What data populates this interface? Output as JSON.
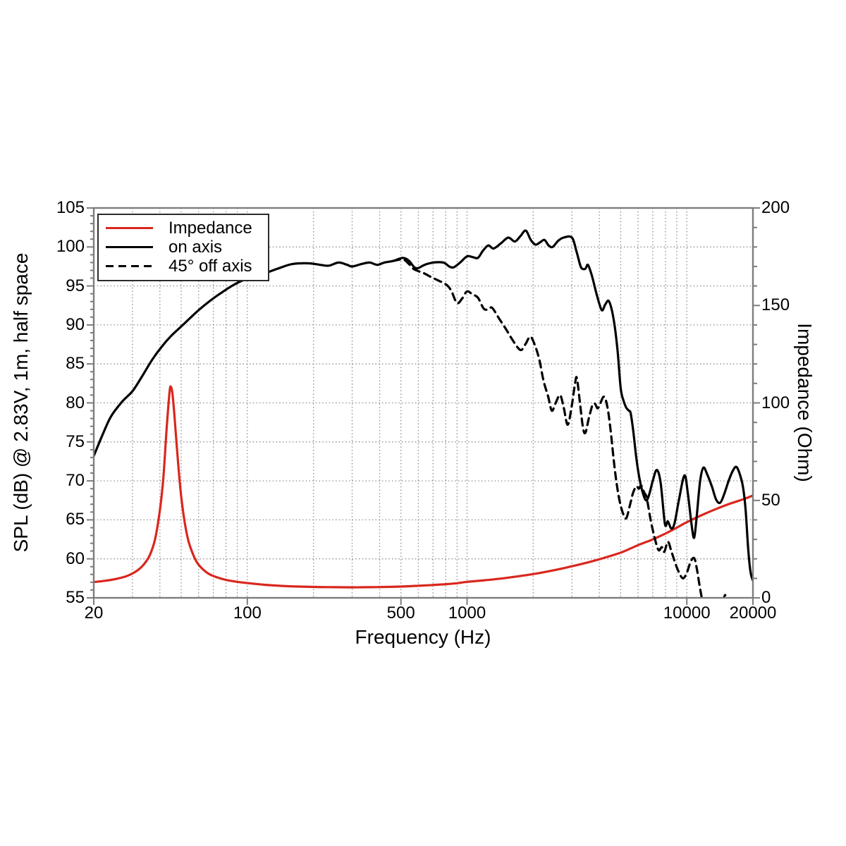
{
  "chart_data": {
    "type": "line",
    "xlabel": "Frequency (Hz)",
    "ylabel_left": "SPL (dB) @ 2.83V, 1m, half space",
    "ylabel_right": "Impedance (Ohm)",
    "x_scale": "log",
    "xlim": [
      20,
      20000
    ],
    "ylim_left": [
      55,
      105
    ],
    "ylim_right": [
      0,
      200
    ],
    "grid": "dotted",
    "x_ticks": [
      {
        "value": 20,
        "label": "20"
      },
      {
        "value": 100,
        "label": "100"
      },
      {
        "value": 500,
        "label": "500"
      },
      {
        "value": 1000,
        "label": "1000"
      },
      {
        "value": 10000,
        "label": "10000"
      },
      {
        "value": 20000,
        "label": "20000"
      }
    ],
    "y_ticks_left": [
      105,
      100,
      95,
      90,
      85,
      80,
      75,
      70,
      65,
      60,
      55
    ],
    "y_ticks_right": [
      200,
      150,
      100,
      50,
      0
    ],
    "colors": {
      "impedance": "#d9271e",
      "spl_curves": "#000000",
      "frame": "#7d7d7d",
      "grid": "#8c8c8c",
      "text": "#000000"
    },
    "legend": {
      "position": "top-left"
    },
    "series": [
      {
        "name": "Impedance",
        "axis": "right",
        "unit": "Ohm",
        "color": "#d9271e",
        "style": "solid",
        "points": [
          [
            20,
            8.1
          ],
          [
            22,
            8.6
          ],
          [
            25,
            9.6
          ],
          [
            28,
            11
          ],
          [
            30,
            12.5
          ],
          [
            32,
            14.5
          ],
          [
            34,
            17.5
          ],
          [
            36,
            22
          ],
          [
            38,
            30
          ],
          [
            40,
            45
          ],
          [
            41.5,
            62
          ],
          [
            43,
            88
          ],
          [
            44.3,
            106
          ],
          [
            45,
            108
          ],
          [
            45.8,
            103
          ],
          [
            47,
            88
          ],
          [
            48.5,
            68
          ],
          [
            50,
            52
          ],
          [
            52,
            38
          ],
          [
            54,
            29
          ],
          [
            57,
            21.5
          ],
          [
            60,
            17
          ],
          [
            65,
            13.2
          ],
          [
            70,
            11.2
          ],
          [
            80,
            9.2
          ],
          [
            90,
            8.2
          ],
          [
            100,
            7.6
          ],
          [
            120,
            6.7
          ],
          [
            150,
            6.0
          ],
          [
            200,
            5.6
          ],
          [
            250,
            5.45
          ],
          [
            300,
            5.4
          ],
          [
            350,
            5.45
          ],
          [
            400,
            5.55
          ],
          [
            500,
            5.8
          ],
          [
            600,
            6.2
          ],
          [
            700,
            6.6
          ],
          [
            800,
            7.0
          ],
          [
            900,
            7.5
          ],
          [
            1000,
            8.2
          ],
          [
            1200,
            9.0
          ],
          [
            1500,
            10.2
          ],
          [
            2000,
            12.2
          ],
          [
            2500,
            14.2
          ],
          [
            3000,
            16.2
          ],
          [
            3500,
            18.0
          ],
          [
            4000,
            19.8
          ],
          [
            5000,
            23.2
          ],
          [
            6000,
            27.0
          ],
          [
            7000,
            30.0
          ],
          [
            8000,
            33.0
          ],
          [
            9000,
            36.0
          ],
          [
            10000,
            38.8
          ],
          [
            12000,
            43.0
          ],
          [
            15000,
            47.5
          ],
          [
            18000,
            50.5
          ],
          [
            20000,
            52.5
          ]
        ]
      },
      {
        "name": "on axis",
        "axis": "left",
        "unit": "dB",
        "color": "#000000",
        "style": "solid",
        "points": [
          [
            20,
            73.2
          ],
          [
            22,
            76.0
          ],
          [
            24,
            78.3
          ],
          [
            27,
            80.2
          ],
          [
            30,
            81.5
          ],
          [
            33,
            83.3
          ],
          [
            37,
            85.6
          ],
          [
            41,
            87.3
          ],
          [
            45,
            88.6
          ],
          [
            50,
            89.8
          ],
          [
            55,
            90.9
          ],
          [
            60,
            91.9
          ],
          [
            67,
            93.0
          ],
          [
            75,
            94.0
          ],
          [
            85,
            95.0
          ],
          [
            95,
            95.7
          ],
          [
            110,
            96.3
          ],
          [
            125,
            96.8
          ],
          [
            140,
            97.3
          ],
          [
            160,
            97.8
          ],
          [
            190,
            97.9
          ],
          [
            215,
            97.7
          ],
          [
            235,
            97.6
          ],
          [
            260,
            98.0
          ],
          [
            285,
            97.7
          ],
          [
            300,
            97.5
          ],
          [
            330,
            97.8
          ],
          [
            360,
            98.0
          ],
          [
            390,
            97.7
          ],
          [
            420,
            98.0
          ],
          [
            460,
            98.2
          ],
          [
            510,
            98.6
          ],
          [
            545,
            98.2
          ],
          [
            575,
            97.4
          ],
          [
            600,
            97.3
          ],
          [
            640,
            97.7
          ],
          [
            700,
            98.0
          ],
          [
            780,
            98.0
          ],
          [
            830,
            97.5
          ],
          [
            870,
            97.4
          ],
          [
            930,
            98.0
          ],
          [
            1000,
            98.8
          ],
          [
            1060,
            98.7
          ],
          [
            1120,
            98.6
          ],
          [
            1180,
            99.5
          ],
          [
            1250,
            100.2
          ],
          [
            1320,
            99.8
          ],
          [
            1430,
            100.5
          ],
          [
            1540,
            101.2
          ],
          [
            1650,
            100.7
          ],
          [
            1750,
            101.4
          ],
          [
            1850,
            102.1
          ],
          [
            1950,
            100.9
          ],
          [
            2050,
            100.3
          ],
          [
            2150,
            100.6
          ],
          [
            2250,
            100.9
          ],
          [
            2350,
            100.2
          ],
          [
            2450,
            100.0
          ],
          [
            2600,
            100.8
          ],
          [
            2750,
            101.2
          ],
          [
            3000,
            101.2
          ],
          [
            3150,
            99.4
          ],
          [
            3300,
            97.4
          ],
          [
            3450,
            97.2
          ],
          [
            3550,
            97.7
          ],
          [
            3700,
            96.3
          ],
          [
            3900,
            93.8
          ],
          [
            4100,
            91.9
          ],
          [
            4250,
            92.6
          ],
          [
            4400,
            93.1
          ],
          [
            4550,
            92.0
          ],
          [
            4700,
            89.8
          ],
          [
            4850,
            86.5
          ],
          [
            5000,
            81.9
          ],
          [
            5150,
            80.3
          ],
          [
            5300,
            79.4
          ],
          [
            5450,
            79.0
          ],
          [
            5550,
            78.7
          ],
          [
            5700,
            76.5
          ],
          [
            5900,
            72.8
          ],
          [
            6100,
            70.2
          ],
          [
            6350,
            68.2
          ],
          [
            6550,
            67.5
          ],
          [
            6750,
            68.3
          ],
          [
            7000,
            70.0
          ],
          [
            7300,
            71.4
          ],
          [
            7600,
            69.8
          ],
          [
            7950,
            64.5
          ],
          [
            8200,
            64.8
          ],
          [
            8500,
            63.9
          ],
          [
            8800,
            64.6
          ],
          [
            9200,
            67.5
          ],
          [
            9750,
            70.7
          ],
          [
            10100,
            68.5
          ],
          [
            10500,
            64.5
          ],
          [
            10800,
            62.7
          ],
          [
            11100,
            65.5
          ],
          [
            11500,
            70.0
          ],
          [
            11900,
            71.7
          ],
          [
            12400,
            70.8
          ],
          [
            13000,
            69.3
          ],
          [
            13600,
            67.6
          ],
          [
            14200,
            67.2
          ],
          [
            14800,
            68.3
          ],
          [
            15500,
            70.0
          ],
          [
            16200,
            71.3
          ],
          [
            16800,
            71.8
          ],
          [
            17400,
            70.9
          ],
          [
            18000,
            69.3
          ],
          [
            18500,
            66.5
          ],
          [
            19000,
            61.5
          ],
          [
            19500,
            58.3
          ],
          [
            20000,
            57.2
          ]
        ]
      },
      {
        "name": "45° off axis",
        "axis": "left",
        "unit": "dB",
        "color": "#000000",
        "style": "dashed",
        "points": [
          [
            460,
            98.2
          ],
          [
            510,
            98.4
          ],
          [
            540,
            97.9
          ],
          [
            570,
            97.2
          ],
          [
            600,
            96.9
          ],
          [
            640,
            96.6
          ],
          [
            690,
            96.1
          ],
          [
            740,
            95.7
          ],
          [
            810,
            95.1
          ],
          [
            850,
            94.3
          ],
          [
            900,
            92.8
          ],
          [
            950,
            93.4
          ],
          [
            1000,
            94.3
          ],
          [
            1060,
            93.9
          ],
          [
            1120,
            93.5
          ],
          [
            1190,
            92.1
          ],
          [
            1250,
            92.0
          ],
          [
            1300,
            92.2
          ],
          [
            1400,
            90.8
          ],
          [
            1500,
            89.5
          ],
          [
            1600,
            88.2
          ],
          [
            1700,
            87.1
          ],
          [
            1770,
            86.8
          ],
          [
            1850,
            87.6
          ],
          [
            1940,
            88.5
          ],
          [
            2030,
            87.5
          ],
          [
            2130,
            85.6
          ],
          [
            2230,
            82.8
          ],
          [
            2340,
            80.8
          ],
          [
            2430,
            79.0
          ],
          [
            2530,
            80.0
          ],
          [
            2650,
            81.0
          ],
          [
            2750,
            79.5
          ],
          [
            2870,
            77.2
          ],
          [
            2990,
            79.5
          ],
          [
            3100,
            82.5
          ],
          [
            3160,
            83.2
          ],
          [
            3250,
            80.5
          ],
          [
            3370,
            76.8
          ],
          [
            3460,
            76.2
          ],
          [
            3580,
            78.0
          ],
          [
            3720,
            79.7
          ],
          [
            3820,
            79.9
          ],
          [
            3930,
            79.3
          ],
          [
            4050,
            80.0
          ],
          [
            4200,
            80.8
          ],
          [
            4350,
            79.5
          ],
          [
            4500,
            76.5
          ],
          [
            4700,
            71.5
          ],
          [
            4900,
            68.0
          ],
          [
            5100,
            66.0
          ],
          [
            5300,
            65.2
          ],
          [
            5500,
            66.8
          ],
          [
            5700,
            68.5
          ],
          [
            5900,
            69.3
          ],
          [
            6050,
            69.0
          ],
          [
            6200,
            69.4
          ],
          [
            6400,
            68.5
          ],
          [
            6550,
            68.0
          ],
          [
            6700,
            66.5
          ],
          [
            6900,
            64.5
          ],
          [
            7200,
            62.3
          ],
          [
            7450,
            61.1
          ],
          [
            7700,
            61.5
          ],
          [
            7900,
            60.9
          ],
          [
            8200,
            62.2
          ],
          [
            8500,
            61.0
          ],
          [
            8850,
            59.5
          ],
          [
            9200,
            58.3
          ],
          [
            9600,
            57.5
          ],
          [
            10000,
            58.2
          ],
          [
            10400,
            59.6
          ],
          [
            10800,
            60.1
          ],
          [
            11100,
            58.8
          ],
          [
            11400,
            56.8
          ],
          [
            11700,
            55.0
          ],
          [
            11900,
            54.3
          ],
          [
            12500,
            53.2
          ],
          [
            13400,
            52.8
          ],
          [
            14300,
            53.6
          ],
          [
            14700,
            54.8
          ],
          [
            14950,
            55.35
          ],
          [
            15200,
            54.7
          ],
          [
            15600,
            53.0
          ]
        ]
      }
    ]
  }
}
